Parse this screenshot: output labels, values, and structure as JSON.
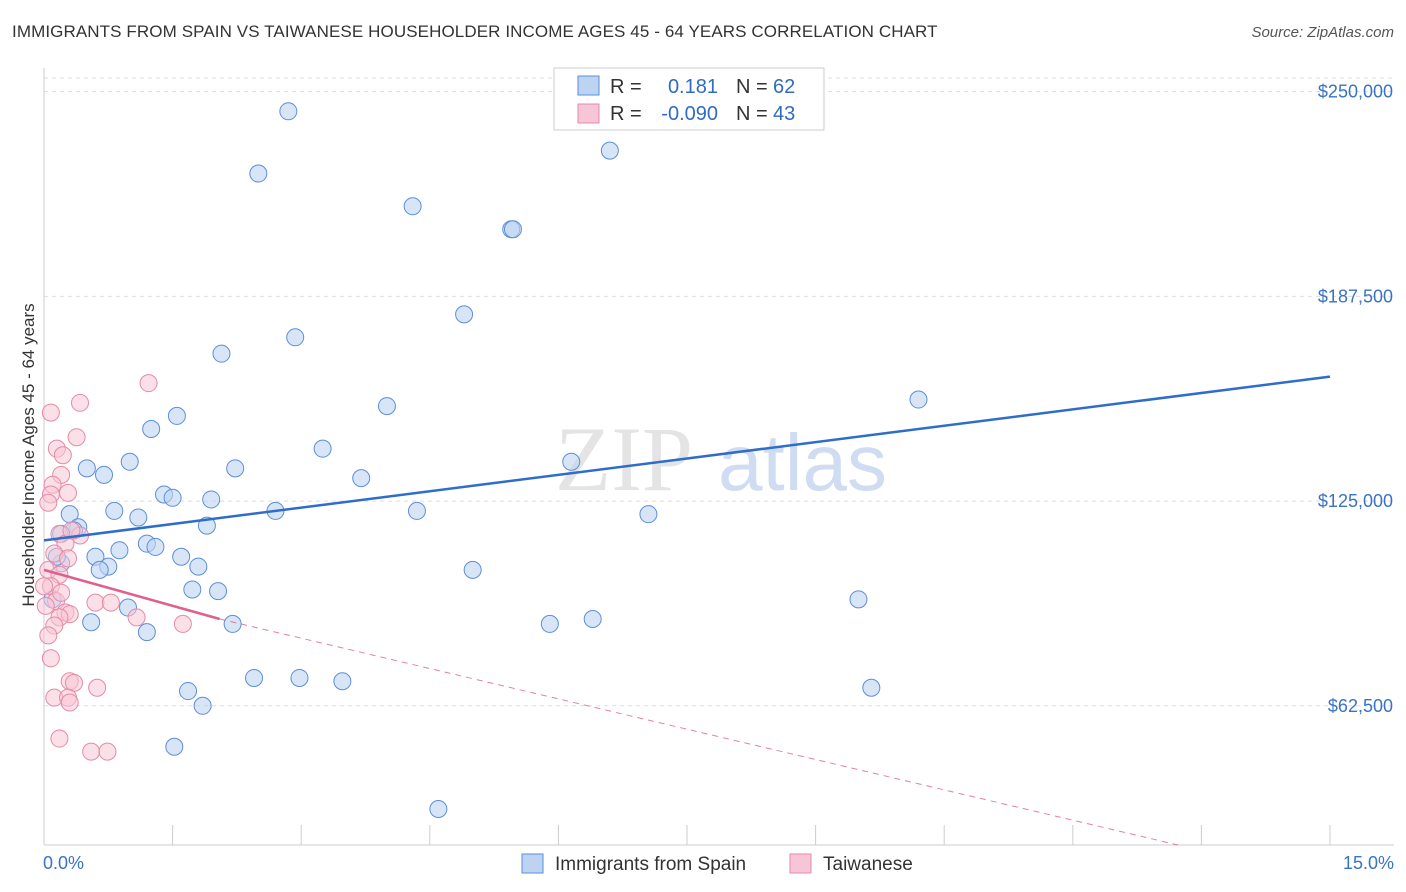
{
  "title": "IMMIGRANTS FROM SPAIN VS TAIWANESE HOUSEHOLDER INCOME AGES 45 - 64 YEARS CORRELATION CHART",
  "source": "Source: ZipAtlas.com",
  "watermark": {
    "zip": "ZIP",
    "atlas": "atlas"
  },
  "colors": {
    "blue": "#5b8fd9",
    "blue_fill": "#bcd3f2",
    "blue_line": "#2e6dc9",
    "pink": "#e889a8",
    "pink_fill": "#f7c6d6",
    "pink_line": "#e0608c",
    "grid": "#dddddd",
    "tick_label": "#3a73c4"
  },
  "legend": {
    "r_label": "R =",
    "n_label": "N =",
    "blue": {
      "r": "0.181",
      "n": "62"
    },
    "pink": {
      "r": "-0.090",
      "n": "43"
    }
  },
  "bottom_legend": {
    "blue": "Immigrants from Spain",
    "pink": "Taiwanese"
  },
  "chart_data": {
    "type": "scatter",
    "title": "IMMIGRANTS FROM SPAIN VS TAIWANESE HOUSEHOLDER INCOME AGES 45 - 64 YEARS CORRELATION CHART",
    "xlabel": "",
    "ylabel": "Householder Income Ages 45 - 64 years",
    "xlim": [
      0,
      15
    ],
    "ylim": [
      20000,
      260000
    ],
    "x_tick_labels": [
      "0.0%",
      "15.0%"
    ],
    "y_ticks": [
      62500,
      125000,
      187500,
      250000
    ],
    "y_tick_labels": [
      "$62,500",
      "$125,000",
      "$187,500",
      "$250,000"
    ],
    "grid": "horizontal dashed",
    "legend_placement": "top-center",
    "series": [
      {
        "name": "Immigrants from Spain",
        "color": "blue",
        "r": 0.181,
        "n": 62,
        "trend": {
          "x": [
            0.0,
            15.0
          ],
          "y": [
            113000,
            163000
          ]
        },
        "points": [
          [
            2.85,
            244000
          ],
          [
            2.5,
            225000
          ],
          [
            6.6,
            232000
          ],
          [
            4.3,
            215000
          ],
          [
            5.45,
            208000
          ],
          [
            5.47,
            208000
          ],
          [
            4.9,
            182000
          ],
          [
            2.93,
            175000
          ],
          [
            2.07,
            170000
          ],
          [
            10.2,
            156000
          ],
          [
            4.0,
            154000
          ],
          [
            1.55,
            151000
          ],
          [
            1.25,
            147000
          ],
          [
            3.25,
            141000
          ],
          [
            6.15,
            137000
          ],
          [
            1.0,
            137000
          ],
          [
            0.5,
            135000
          ],
          [
            2.23,
            135000
          ],
          [
            3.7,
            132000
          ],
          [
            0.7,
            133000
          ],
          [
            1.4,
            127000
          ],
          [
            1.5,
            126000
          ],
          [
            1.95,
            125500
          ],
          [
            0.82,
            122000
          ],
          [
            2.7,
            122000
          ],
          [
            4.35,
            122000
          ],
          [
            7.05,
            121000
          ],
          [
            0.3,
            121000
          ],
          [
            1.1,
            120000
          ],
          [
            1.9,
            117500
          ],
          [
            0.4,
            117000
          ],
          [
            0.35,
            116000
          ],
          [
            0.2,
            115000
          ],
          [
            1.2,
            112000
          ],
          [
            1.3,
            111000
          ],
          [
            0.88,
            110000
          ],
          [
            0.6,
            108000
          ],
          [
            1.6,
            108000
          ],
          [
            0.2,
            106000
          ],
          [
            0.75,
            105000
          ],
          [
            1.8,
            105000
          ],
          [
            0.65,
            104000
          ],
          [
            5.0,
            104000
          ],
          [
            1.73,
            98000
          ],
          [
            2.03,
            97500
          ],
          [
            0.98,
            92500
          ],
          [
            9.5,
            95000
          ],
          [
            0.55,
            88000
          ],
          [
            2.2,
            87500
          ],
          [
            5.9,
            87500
          ],
          [
            6.4,
            89000
          ],
          [
            1.2,
            85000
          ],
          [
            2.45,
            71000
          ],
          [
            2.98,
            71000
          ],
          [
            3.48,
            70000
          ],
          [
            9.65,
            68000
          ],
          [
            1.68,
            67000
          ],
          [
            1.85,
            62500
          ],
          [
            1.52,
            50000
          ],
          [
            4.6,
            31000
          ],
          [
            0.1,
            95000
          ],
          [
            0.15,
            108000
          ]
        ]
      },
      {
        "name": "Taiwanese",
        "color": "pink",
        "r": -0.09,
        "n": 43,
        "trend_solid": {
          "x": [
            0.0,
            2.05
          ],
          "y": [
            104000,
            89000
          ]
        },
        "trend_dashed": {
          "x": [
            2.05,
            15.0
          ],
          "y": [
            89000,
            0
          ]
        },
        "points": [
          [
            1.22,
            161000
          ],
          [
            0.42,
            155000
          ],
          [
            0.08,
            152000
          ],
          [
            0.38,
            144500
          ],
          [
            0.15,
            141000
          ],
          [
            0.22,
            139000
          ],
          [
            0.2,
            133000
          ],
          [
            0.1,
            130000
          ],
          [
            0.08,
            127000
          ],
          [
            0.28,
            127500
          ],
          [
            0.05,
            124500
          ],
          [
            0.42,
            114500
          ],
          [
            0.18,
            115000
          ],
          [
            0.25,
            112000
          ],
          [
            0.32,
            116000
          ],
          [
            0.12,
            109000
          ],
          [
            0.28,
            107500
          ],
          [
            0.05,
            104000
          ],
          [
            0.18,
            102500
          ],
          [
            0.08,
            99000
          ],
          [
            0.0,
            99000
          ],
          [
            0.6,
            94000
          ],
          [
            0.78,
            94000
          ],
          [
            0.14,
            94500
          ],
          [
            0.25,
            91000
          ],
          [
            0.3,
            90500
          ],
          [
            0.18,
            89500
          ],
          [
            1.08,
            89500
          ],
          [
            1.62,
            87500
          ],
          [
            0.12,
            87000
          ],
          [
            0.05,
            84000
          ],
          [
            0.08,
            77000
          ],
          [
            0.3,
            70000
          ],
          [
            0.35,
            69500
          ],
          [
            0.62,
            68000
          ],
          [
            0.12,
            65000
          ],
          [
            0.28,
            65000
          ],
          [
            0.3,
            63500
          ],
          [
            0.18,
            52500
          ],
          [
            0.55,
            48500
          ],
          [
            0.74,
            48500
          ],
          [
            0.02,
            93000
          ],
          [
            0.2,
            97000
          ]
        ]
      }
    ]
  }
}
